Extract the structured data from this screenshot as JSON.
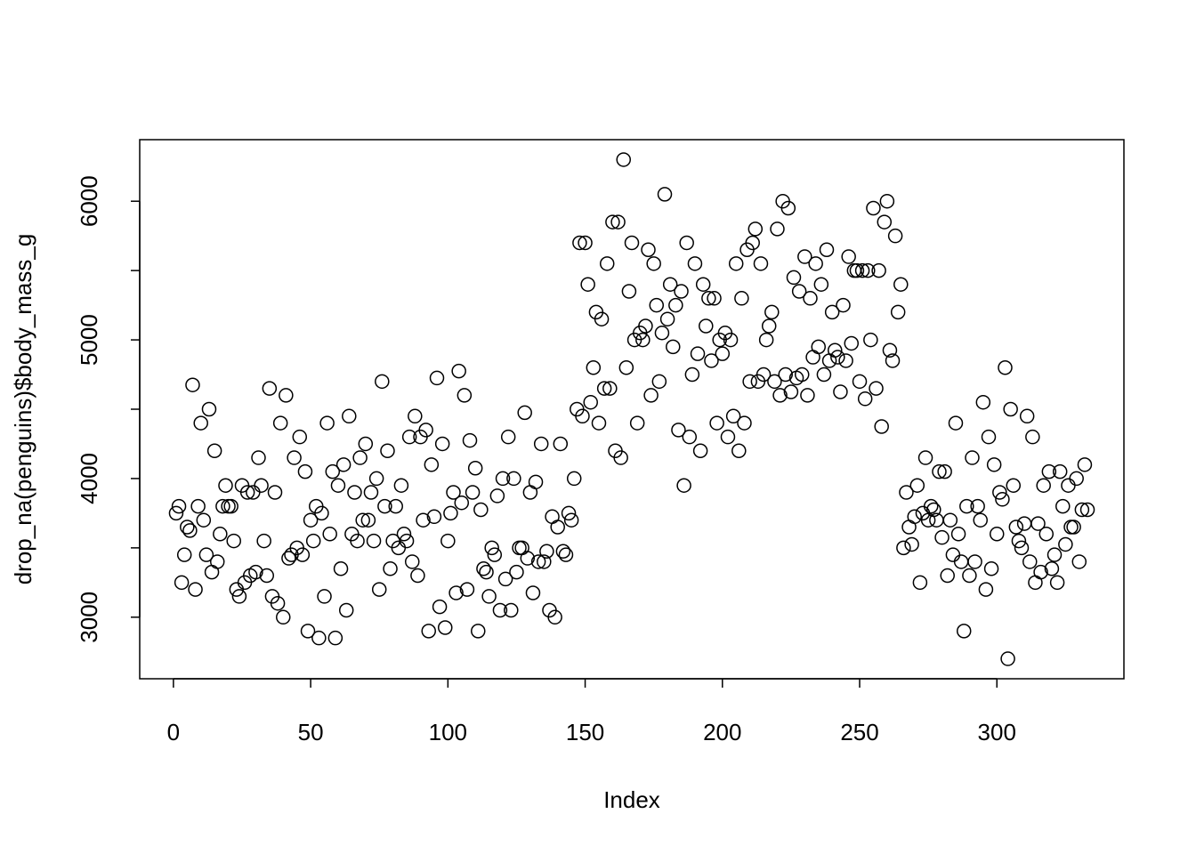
{
  "chart_data": {
    "type": "scatter",
    "x_label": "Index",
    "y_label": "drop_na(penguins)$body_mass_g",
    "color": "#000000",
    "x": [
      1,
      2,
      3,
      4,
      5,
      6,
      7,
      8,
      9,
      10,
      11,
      12,
      13,
      14,
      15,
      16,
      17,
      18,
      19,
      20,
      21,
      22,
      23,
      24,
      25,
      26,
      27,
      28,
      29,
      30,
      31,
      32,
      33,
      34,
      35,
      36,
      37,
      38,
      39,
      40,
      41,
      42,
      43,
      44,
      45,
      46,
      47,
      48,
      49,
      50,
      51,
      52,
      53,
      54,
      55,
      56,
      57,
      58,
      59,
      60,
      61,
      62,
      63,
      64,
      65,
      66,
      67,
      68,
      69,
      70,
      71,
      72,
      73,
      74,
      75,
      76,
      77,
      78,
      79,
      80,
      81,
      82,
      83,
      84,
      85,
      86,
      87,
      88,
      89,
      90,
      91,
      92,
      93,
      94,
      95,
      96,
      97,
      98,
      99,
      100,
      101,
      102,
      103,
      104,
      105,
      106,
      107,
      108,
      109,
      110,
      111,
      112,
      113,
      114,
      115,
      116,
      117,
      118,
      119,
      120,
      121,
      122,
      123,
      124,
      125,
      126,
      127,
      128,
      129,
      130,
      131,
      132,
      133,
      134,
      135,
      136,
      137,
      138,
      139,
      140,
      141,
      142,
      143,
      144,
      145,
      146,
      147,
      148,
      149,
      150,
      151,
      152,
      153,
      154,
      155,
      156,
      157,
      158,
      159,
      160,
      161,
      162,
      163,
      164,
      165,
      166,
      167,
      168,
      169,
      170,
      171,
      172,
      173,
      174,
      175,
      176,
      177,
      178,
      179,
      180,
      181,
      182,
      183,
      184,
      185,
      186,
      187,
      188,
      189,
      190,
      191,
      192,
      193,
      194,
      195,
      196,
      197,
      198,
      199,
      200,
      201,
      202,
      203,
      204,
      205,
      206,
      207,
      208,
      209,
      210,
      211,
      212,
      213,
      214,
      215,
      216,
      217,
      218,
      219,
      220,
      221,
      222,
      223,
      224,
      225,
      226,
      227,
      228,
      229,
      230,
      231,
      232,
      233,
      234,
      235,
      236,
      237,
      238,
      239,
      240,
      241,
      242,
      243,
      244,
      245,
      246,
      247,
      248,
      249,
      250,
      251,
      252,
      253,
      254,
      255,
      256,
      257,
      258,
      259,
      260,
      261,
      262,
      263,
      264,
      265,
      266,
      267,
      268,
      269,
      270,
      271,
      272,
      273,
      274,
      275,
      276,
      277,
      278,
      279,
      280,
      281,
      282,
      283,
      284,
      285,
      286,
      287,
      288,
      289,
      290,
      291,
      292,
      293,
      294,
      295,
      296,
      297,
      298,
      299,
      300,
      301,
      302,
      303,
      304,
      305,
      306,
      307,
      308,
      309,
      310,
      311,
      312,
      313,
      314,
      315,
      316,
      317,
      318,
      319,
      320,
      321,
      322,
      323,
      324,
      325,
      326,
      327,
      328,
      329,
      330,
      331,
      332,
      333
    ],
    "values": [
      3750,
      3800,
      3250,
      3450,
      3650,
      3625,
      4675,
      3200,
      3800,
      4400,
      3700,
      3450,
      4500,
      3325,
      4200,
      3400,
      3600,
      3800,
      3950,
      3800,
      3800,
      3550,
      3200,
      3150,
      3950,
      3250,
      3900,
      3300,
      3900,
      3325,
      4150,
      3950,
      3550,
      3300,
      4650,
      3150,
      3900,
      3100,
      4400,
      3000,
      4600,
      3425,
      3450,
      4150,
      3500,
      4300,
      3450,
      4050,
      2900,
      3700,
      3550,
      3800,
      2850,
      3750,
      3150,
      4400,
      3600,
      4050,
      2850,
      3950,
      3350,
      4100,
      3050,
      4450,
      3600,
      3900,
      3550,
      4150,
      3700,
      4250,
      3700,
      3900,
      3550,
      4000,
      3200,
      4700,
      3800,
      4200,
      3350,
      3550,
      3800,
      3500,
      3950,
      3600,
      3550,
      4300,
      3400,
      4450,
      3300,
      4300,
      3700,
      4350,
      2900,
      4100,
      3725,
      4725,
      3075,
      4250,
      2925,
      3550,
      3750,
      3900,
      3175,
      4775,
      3825,
      4600,
      3200,
      4275,
      3900,
      4075,
      2900,
      3775,
      3350,
      3325,
      3150,
      3500,
      3450,
      3875,
      3050,
      4000,
      3275,
      4300,
      3050,
      4000,
      3325,
      3500,
      3500,
      4475,
      3425,
      3900,
      3175,
      3975,
      3400,
      4250,
      3400,
      3475,
      3050,
      3725,
      3000,
      3650,
      4250,
      3475,
      3450,
      3750,
      3700,
      4000,
      4500,
      5700,
      4450,
      5700,
      5400,
      4550,
      4800,
      5200,
      4400,
      5150,
      4650,
      5550,
      4650,
      5850,
      4200,
      5850,
      4150,
      6300,
      4800,
      5350,
      5700,
      5000,
      4400,
      5050,
      5000,
      5100,
      5650,
      4600,
      5550,
      5250,
      4700,
      5050,
      6050,
      5150,
      5400,
      4950,
      5250,
      4350,
      5350,
      3950,
      5700,
      4300,
      4750,
      5550,
      4900,
      4200,
      5400,
      5100,
      5300,
      4850,
      5300,
      4400,
      5000,
      4900,
      5050,
      4300,
      5000,
      4450,
      5550,
      4200,
      5300,
      4400,
      5650,
      4700,
      5700,
      5800,
      4700,
      5550,
      4750,
      5000,
      5100,
      5200,
      4700,
      5800,
      4600,
      6000,
      4750,
      5950,
      4625,
      5450,
      4725,
      5350,
      4750,
      5600,
      4600,
      5300,
      4875,
      5550,
      4950,
      5400,
      4750,
      5650,
      4850,
      5200,
      4925,
      4875,
      4625,
      5250,
      4850,
      5600,
      4975,
      5500,
      5500,
      4700,
      5500,
      4575,
      5500,
      5000,
      5950,
      4650,
      5500,
      4375,
      5850,
      6000,
      4925,
      4850,
      5750,
      5200,
      5400,
      3500,
      3900,
      3650,
      3525,
      3725,
      3950,
      3250,
      3750,
      4150,
      3700,
      3800,
      3775,
      3700,
      4050,
      3575,
      4050,
      3300,
      3700,
      3450,
      4400,
      3600,
      3400,
      2900,
      3800,
      3300,
      4150,
      3400,
      3800,
      3700,
      4550,
      3200,
      4300,
      3350,
      4100,
      3600,
      3900,
      3850,
      4800,
      2700,
      4500,
      3950,
      3650,
      3550,
      3500,
      3675,
      4450,
      3400,
      4300,
      3250,
      3675,
      3325,
      3950,
      3600,
      4050,
      3350,
      3450,
      3250,
      4050,
      3800,
      3525,
      3950,
      3650,
      3650,
      4000,
      3400,
      3775,
      4100,
      3775
    ],
    "xlim": [
      -12.28,
      346.28
    ],
    "ylim": [
      2556,
      6444
    ],
    "xticks": [
      0,
      50,
      100,
      150,
      200,
      250,
      300
    ],
    "yticks": [
      3000,
      4000,
      5000,
      6000
    ],
    "yminor_ticks": [
      3500,
      4500,
      5500
    ]
  }
}
